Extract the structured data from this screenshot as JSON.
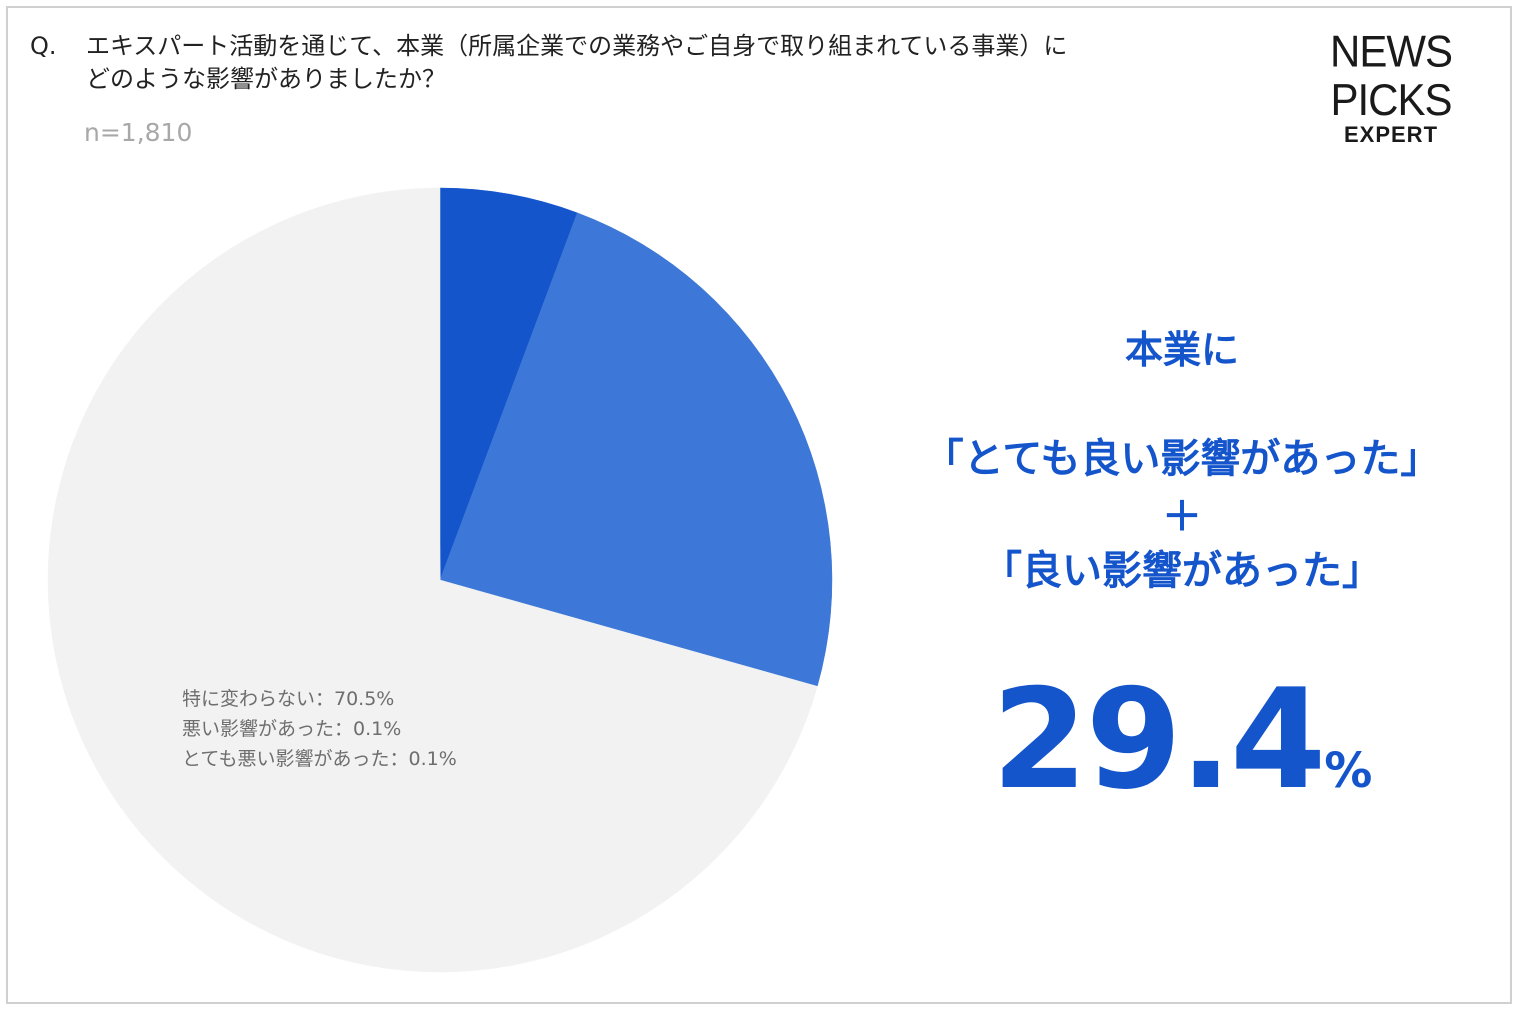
{
  "question": {
    "prefix": "Q.",
    "line1": "エキスパート活動を通じて、本業（所属企業での業務やご自身で取り組まれている事業）に",
    "line2": "どのような影響がありましたか？"
  },
  "sample_size": "n=1,810",
  "logo": {
    "main": "NEWS PICKS",
    "sub": "EXPERT"
  },
  "colors": {
    "very_good": "#1455cc",
    "good": "#3d78d8",
    "other": "#f2f2f2",
    "headline": "#1455cc"
  },
  "headline": {
    "line1": "本業に",
    "line2": "「とても良い影響があった」",
    "plus": "＋",
    "line3": "「良い影響があった」",
    "value": "29.4",
    "unit": "%"
  },
  "other_labels": [
    "特に変わらない：70.5%",
    "悪い影響があった：0.1%",
    "とても悪い影響があった：0.1%"
  ],
  "chart_data": {
    "type": "pie",
    "title": "",
    "start": "12 o'clock, clockwise",
    "slices": [
      {
        "value": 5.7,
        "color": "#1455cc"
      },
      {
        "value": 23.7,
        "color": "#3d78d8"
      },
      {
        "label": "特に変わらない",
        "value": 70.5,
        "color": "#f2f2f2"
      },
      {
        "label": "悪い影響があった",
        "value": 0.1,
        "color": "#f2f2f2"
      },
      {
        "label": "とても悪い影響があった",
        "value": 0.1,
        "color": "#f2f2f2"
      }
    ],
    "highlight_total": 29.4
  }
}
